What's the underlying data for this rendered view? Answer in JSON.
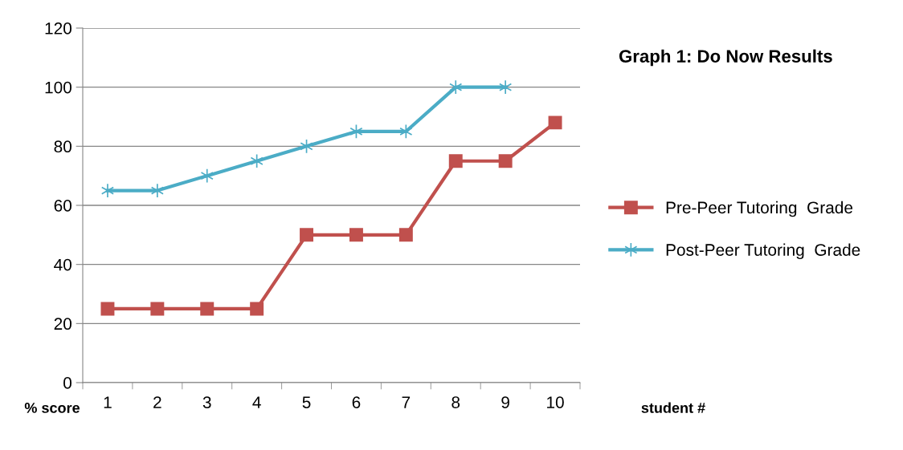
{
  "chart_data": {
    "type": "line",
    "title": "Graph 1: Do Now Results",
    "xlabel": "student #",
    "ylabel": "% score",
    "categories": [
      "1",
      "2",
      "3",
      "4",
      "5",
      "6",
      "7",
      "8",
      "9",
      "10"
    ],
    "series": [
      {
        "name": "Pre-Peer Tutoring  Grade",
        "color": "#c0504d",
        "marker": "square",
        "values": [
          25,
          25,
          25,
          25,
          50,
          50,
          50,
          75,
          75,
          88
        ]
      },
      {
        "name": "Post-Peer Tutoring  Grade",
        "color": "#4bacc6",
        "marker": "cross",
        "values": [
          65,
          65,
          70,
          75,
          80,
          85,
          85,
          100,
          100,
          null
        ]
      }
    ],
    "ylim": [
      0,
      120
    ],
    "yticks": [
      0,
      20,
      40,
      60,
      80,
      100,
      120
    ],
    "grid": "y",
    "legend": "right"
  }
}
